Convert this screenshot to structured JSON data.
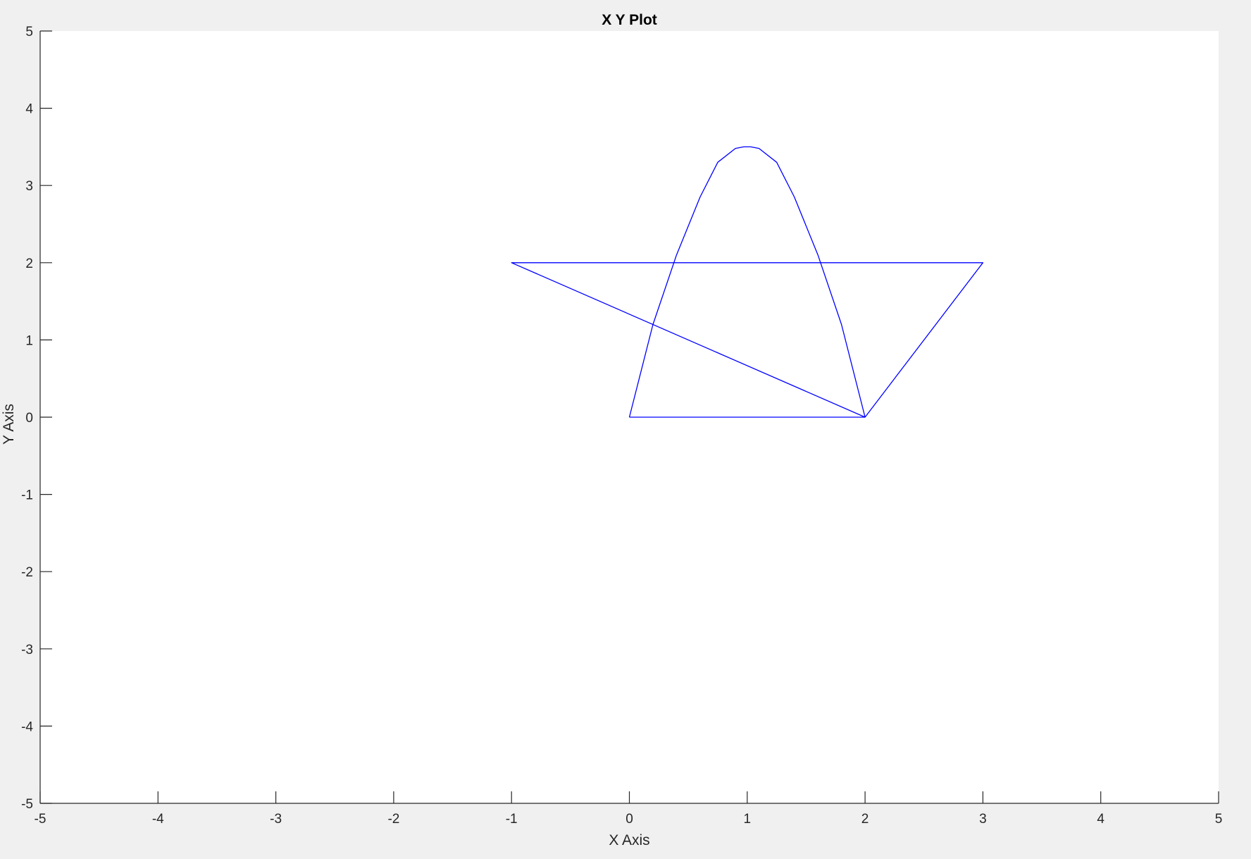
{
  "chart_data": {
    "type": "line",
    "title": "X Y Plot",
    "xlabel": "X Axis",
    "ylabel": "Y Axis",
    "xlim": [
      -5,
      5
    ],
    "ylim": [
      -5,
      5
    ],
    "xticks": [
      -5,
      -4,
      -3,
      -2,
      -1,
      0,
      1,
      2,
      3,
      4,
      5
    ],
    "yticks": [
      -5,
      -4,
      -3,
      -2,
      -1,
      0,
      1,
      2,
      3,
      4,
      5
    ],
    "xtick_labels": [
      "-5",
      "-4",
      "-3",
      "-2",
      "-1",
      "0",
      "1",
      "2",
      "3",
      "4",
      "5"
    ],
    "ytick_labels": [
      "-5",
      "-4",
      "-3",
      "-2",
      "-1",
      "0",
      "1",
      "2",
      "3",
      "4",
      "5"
    ],
    "grid": false,
    "series": [
      {
        "color": "#0000ff",
        "x": [
          0,
          0.2,
          0.4,
          0.6,
          0.75,
          0.9,
          0.97,
          1.03,
          1.1,
          1.25,
          1.4,
          1.6,
          1.8,
          2,
          3,
          -1,
          2,
          0
        ],
        "y": [
          0,
          1.2,
          2.1,
          2.85,
          3.3,
          3.48,
          3.5,
          3.5,
          3.48,
          3.3,
          2.85,
          2.1,
          1.2,
          0,
          2,
          2,
          0,
          0
        ]
      }
    ]
  }
}
